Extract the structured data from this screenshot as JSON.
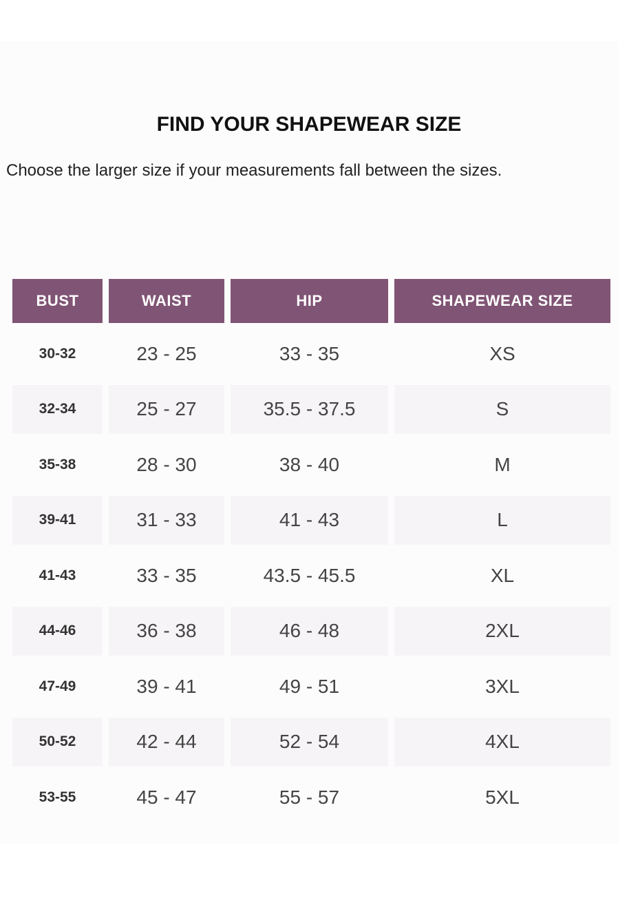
{
  "header": {
    "title": "FIND YOUR SHAPEWEAR SIZE",
    "subtitle": "Choose the larger size if your measurements fall between the sizes."
  },
  "table": {
    "columns": [
      "BUST",
      "WAIST",
      "HIP",
      "SHAPEWEAR SIZE"
    ],
    "rows": [
      [
        "30-32",
        "23 - 25",
        "33 - 35",
        "XS"
      ],
      [
        "32-34",
        "25 - 27",
        "35.5 - 37.5",
        "S"
      ],
      [
        "35-38",
        "28 - 30",
        "38 - 40",
        "M"
      ],
      [
        "39-41",
        "31 - 33",
        "41 - 43",
        "L"
      ],
      [
        "41-43",
        "33 - 35",
        "43.5 - 45.5",
        "XL"
      ],
      [
        "44-46",
        "36 - 38",
        "46 - 48",
        "2XL"
      ],
      [
        "47-49",
        "39 - 41",
        "49 - 51",
        "3XL"
      ],
      [
        "50-52",
        "42 - 44",
        "52 - 54",
        "4XL"
      ],
      [
        "53-55",
        "45 - 47",
        "55 - 57",
        "5XL"
      ]
    ]
  }
}
